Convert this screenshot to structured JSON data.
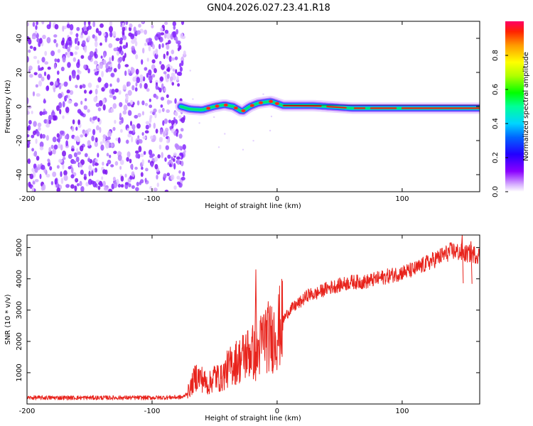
{
  "title": "GN04.2026.027.23.41.R18",
  "chart_data": [
    {
      "type": "heatmap",
      "xlabel": "Height of straight line (km)",
      "ylabel": "Frequency (Hz)",
      "xlim": [
        -200,
        162
      ],
      "ylim": [
        -50,
        50
      ],
      "xticks": [
        -200,
        -100,
        0,
        100
      ],
      "xtick_labels": [
        "-200",
        "-100",
        "0",
        "100"
      ],
      "yticks": [
        -40,
        -20,
        0,
        20,
        40
      ],
      "ytick_labels": [
        "-40",
        "-20",
        "0",
        "20",
        "40"
      ],
      "noise_region_km": [
        -200,
        -77
      ],
      "signal_start_km": -77,
      "centre_line": [
        {
          "x": -77,
          "y": 0
        },
        {
          "x": -70,
          "y": -1.5
        },
        {
          "x": -60,
          "y": -2
        },
        {
          "x": -50,
          "y": 0
        },
        {
          "x": -42,
          "y": 1
        },
        {
          "x": -35,
          "y": 0
        },
        {
          "x": -28,
          "y": -3
        },
        {
          "x": -22,
          "y": 0
        },
        {
          "x": -15,
          "y": 2
        },
        {
          "x": -5,
          "y": 3
        },
        {
          "x": 5,
          "y": 0.5
        },
        {
          "x": 30,
          "y": 0.5
        },
        {
          "x": 60,
          "y": -1
        },
        {
          "x": 100,
          "y": -1
        },
        {
          "x": 162,
          "y": -1
        }
      ],
      "colorbar": {
        "label": "Normalized spectral amplitude",
        "range": [
          0,
          1
        ],
        "ticks": [
          0,
          0.2,
          0.4,
          0.6,
          0.8
        ],
        "tick_labels": [
          "0.0",
          "0.2",
          "0.4",
          "0.6",
          "0.8"
        ]
      }
    },
    {
      "type": "line",
      "xlabel": "Height of straight line (km)",
      "ylabel": "SNR (10 * v/v)",
      "xlim": [
        -200,
        162
      ],
      "ylim": [
        0,
        5400
      ],
      "xticks": [
        -200,
        -100,
        0,
        100
      ],
      "xtick_labels": [
        "-200",
        "-100",
        "0",
        "100"
      ],
      "yticks": [
        1000,
        2000,
        3000,
        4000,
        5000
      ],
      "ytick_labels": [
        "1000",
        "2000",
        "3000",
        "4000",
        "5000"
      ],
      "color": "#e8231c",
      "series": [
        {
          "name": "SNR",
          "points": [
            {
              "x": -200,
              "y": 200
            },
            {
              "x": -150,
              "y": 200
            },
            {
              "x": -100,
              "y": 200
            },
            {
              "x": -75,
              "y": 220
            },
            {
              "x": -70,
              "y": 450
            },
            {
              "x": -65,
              "y": 900
            },
            {
              "x": -60,
              "y": 800
            },
            {
              "x": -55,
              "y": 600
            },
            {
              "x": -50,
              "y": 900
            },
            {
              "x": -45,
              "y": 800
            },
            {
              "x": -40,
              "y": 1100
            },
            {
              "x": -35,
              "y": 1300
            },
            {
              "x": -30,
              "y": 1400
            },
            {
              "x": -25,
              "y": 1600
            },
            {
              "x": -20,
              "y": 1700
            },
            {
              "x": -17,
              "y": 1500
            },
            {
              "x": -15,
              "y": 1700
            },
            {
              "x": -10,
              "y": 2200
            },
            {
              "x": -5,
              "y": 2100
            },
            {
              "x": 0,
              "y": 2300
            },
            {
              "x": 5,
              "y": 2700
            },
            {
              "x": 10,
              "y": 3000
            },
            {
              "x": 20,
              "y": 3300
            },
            {
              "x": 25,
              "y": 3500
            },
            {
              "x": 30,
              "y": 3500
            },
            {
              "x": 40,
              "y": 3700
            },
            {
              "x": 50,
              "y": 3800
            },
            {
              "x": 60,
              "y": 3900
            },
            {
              "x": 70,
              "y": 3900
            },
            {
              "x": 80,
              "y": 4000
            },
            {
              "x": 90,
              "y": 4100
            },
            {
              "x": 100,
              "y": 4200
            },
            {
              "x": 110,
              "y": 4300
            },
            {
              "x": 120,
              "y": 4500
            },
            {
              "x": 130,
              "y": 4700
            },
            {
              "x": 140,
              "y": 4900
            },
            {
              "x": 150,
              "y": 4800
            },
            {
              "x": 155,
              "y": 4800
            },
            {
              "x": 162,
              "y": 4750
            }
          ],
          "spikes": [
            {
              "x": -17,
              "y": 4300
            },
            {
              "x": 148,
              "y": 5400
            },
            {
              "x": 155,
              "y": 5200
            }
          ]
        }
      ]
    }
  ]
}
